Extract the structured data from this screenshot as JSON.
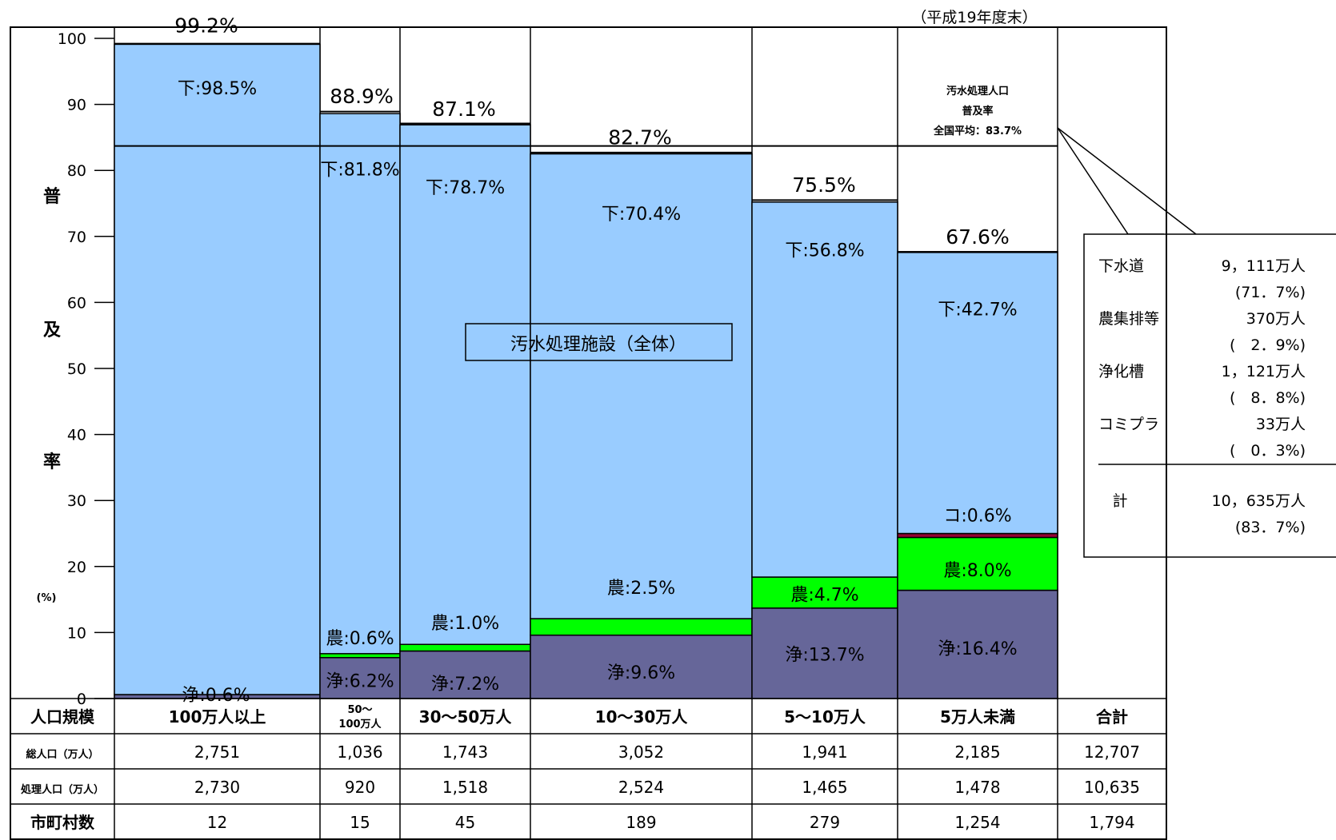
{
  "colors": {
    "sewer": "#99ccff",
    "agri": "#00ff00",
    "septic": "#666699",
    "community": "#990033",
    "line": "#000000"
  },
  "chart_data": {
    "type": "bar",
    "subtype": "variable-width stacked",
    "note_top_right": "（平成19年度末）",
    "ylabel": [
      "普",
      "及",
      "率"
    ],
    "yunit": "(%)",
    "ylim": [
      0,
      100
    ],
    "yticks": [
      0,
      10,
      20,
      30,
      40,
      50,
      60,
      70,
      80,
      90,
      100
    ],
    "grid": false,
    "center_label": "汚水処理施設（全体）",
    "national_average": {
      "value": 83.7,
      "label_lines": [
        "汚水処理人口",
        "普及率",
        "全国平均：83.7%"
      ]
    },
    "categories": [
      "100万人以上",
      "50～|100万人",
      "30～50万人",
      "10～30万人",
      "5～10万人",
      "5万人未満"
    ],
    "totals_pct": [
      99.2,
      88.9,
      87.1,
      82.7,
      75.5,
      67.6
    ],
    "totals_labels": [
      "99.2%",
      "88.9%",
      "87.1%",
      "82.7%",
      "75.5%",
      "67.6%"
    ],
    "series": [
      {
        "name": "浄",
        "values": [
          0.6,
          6.2,
          7.2,
          9.6,
          13.7,
          16.4
        ],
        "labels": [
          "浄:0.6%",
          "浄:6.2%",
          "浄:7.2%",
          "浄:9.6%",
          "浄:13.7%",
          "浄:16.4%"
        ]
      },
      {
        "name": "農",
        "values": [
          0,
          0.6,
          1.0,
          2.5,
          4.7,
          8.0
        ],
        "labels": [
          "",
          "農:0.6%",
          "農:1.0%",
          "農:2.5%",
          "農:4.7%",
          "農:8.0%"
        ]
      },
      {
        "name": "コ",
        "values": [
          0,
          0,
          0,
          0,
          0,
          0.6
        ],
        "labels": [
          "",
          "",
          "",
          "",
          "",
          "コ:0.6%"
        ]
      },
      {
        "name": "下",
        "values": [
          98.5,
          81.8,
          78.7,
          70.4,
          56.8,
          42.7
        ],
        "labels": [
          "下:98.5%",
          "下:81.8%",
          "下:78.7%",
          "下:70.4%",
          "下:56.8%",
          "下:42.7%"
        ]
      }
    ],
    "callout": {
      "rows": [
        {
          "label": "下水道",
          "value": "9，111万人",
          "pct": "(71．7%)"
        },
        {
          "label": "農集排等",
          "value": "370万人",
          "pct": "(　2．9%)"
        },
        {
          "label": "浄化槽",
          "value": "1，121万人",
          "pct": "(　8．8%)"
        },
        {
          "label": "コミプラ",
          "value": "33万人",
          "pct": "(　0．3%)"
        }
      ],
      "total": {
        "label": "計",
        "value": "10，635万人",
        "pct": "(83．7%)"
      }
    },
    "table": {
      "header": {
        "label": "人口規模",
        "cells": [
          "100万人以上",
          "50～|100万人",
          "30～50万人",
          "10～30万人",
          "5～10万人",
          "5万人未満",
          "合計"
        ]
      },
      "rows": [
        {
          "label": "総人口（万人）",
          "cells": [
            "2,751",
            "1,036",
            "1,743",
            "3,052",
            "1,941",
            "2,185",
            "12,707"
          ]
        },
        {
          "label": "処理人口（万人）",
          "cells": [
            "2,730",
            "920",
            "1,518",
            "2,524",
            "1,465",
            "1,478",
            "10,635"
          ]
        },
        {
          "label": "市町村数",
          "cells": [
            "12",
            "15",
            "45",
            "189",
            "279",
            "1,254",
            "1,794"
          ]
        }
      ]
    }
  }
}
